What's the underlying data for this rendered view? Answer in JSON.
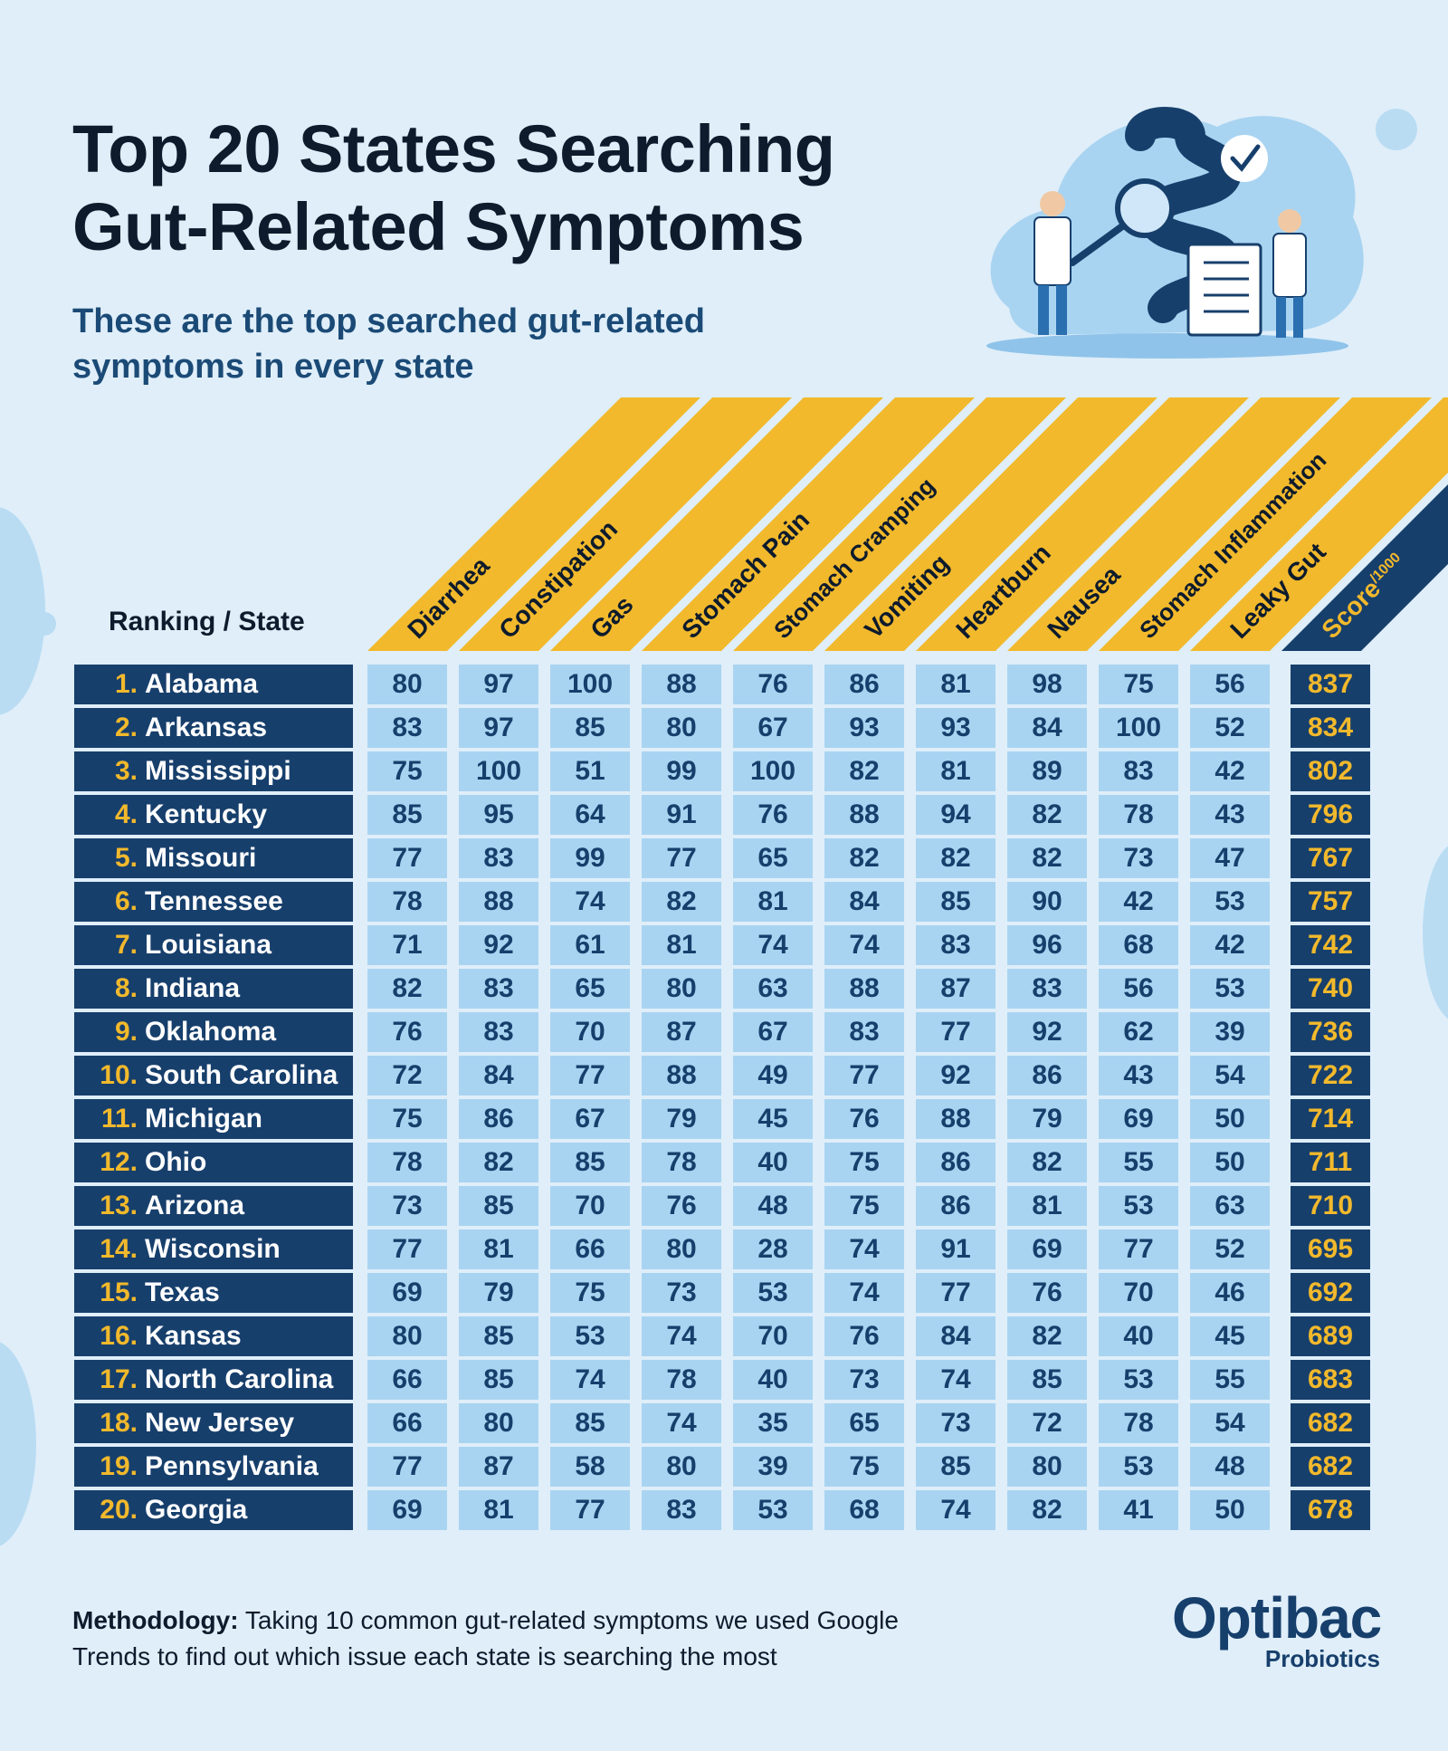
{
  "title_line1": "Top 20 States Searching",
  "title_line2": "Gut-Related Symptoms",
  "subtitle": "These are the top searched gut-related symptoms in every state",
  "colors": {
    "navy": "#173f6c",
    "gold": "#f2b92c",
    "light_blue": "#a9d4f1",
    "background": "#dfeef9"
  },
  "chart_data": {
    "type": "table",
    "row_header": "Ranking / State",
    "columns": [
      "Diarrhea",
      "Constipation",
      "Gas",
      "Stomach Pain",
      "Stomach Cramping",
      "Vomiting",
      "Heartburn",
      "Nausea",
      "Stomach Inflammation",
      "Leaky Gut"
    ],
    "score_label": "Score",
    "score_unit": "/1000",
    "rows": [
      {
        "rank": "1.",
        "state": "Alabama",
        "values": [
          80,
          97,
          100,
          88,
          76,
          86,
          81,
          98,
          75,
          56
        ],
        "score": 837
      },
      {
        "rank": "2.",
        "state": "Arkansas",
        "values": [
          83,
          97,
          85,
          80,
          67,
          93,
          93,
          84,
          100,
          52
        ],
        "score": 834
      },
      {
        "rank": "3.",
        "state": "Mississippi",
        "values": [
          75,
          100,
          51,
          99,
          100,
          82,
          81,
          89,
          83,
          42
        ],
        "score": 802
      },
      {
        "rank": "4.",
        "state": "Kentucky",
        "values": [
          85,
          95,
          64,
          91,
          76,
          88,
          94,
          82,
          78,
          43
        ],
        "score": 796
      },
      {
        "rank": "5.",
        "state": "Missouri",
        "values": [
          77,
          83,
          99,
          77,
          65,
          82,
          82,
          82,
          73,
          47
        ],
        "score": 767
      },
      {
        "rank": "6.",
        "state": "Tennessee",
        "values": [
          78,
          88,
          74,
          82,
          81,
          84,
          85,
          90,
          42,
          53
        ],
        "score": 757
      },
      {
        "rank": "7.",
        "state": "Louisiana",
        "values": [
          71,
          92,
          61,
          81,
          74,
          74,
          83,
          96,
          68,
          42
        ],
        "score": 742
      },
      {
        "rank": "8.",
        "state": "Indiana",
        "values": [
          82,
          83,
          65,
          80,
          63,
          88,
          87,
          83,
          56,
          53
        ],
        "score": 740
      },
      {
        "rank": "9.",
        "state": "Oklahoma",
        "values": [
          76,
          83,
          70,
          87,
          67,
          83,
          77,
          92,
          62,
          39
        ],
        "score": 736
      },
      {
        "rank": "10.",
        "state": "South Carolina",
        "values": [
          72,
          84,
          77,
          88,
          49,
          77,
          92,
          86,
          43,
          54
        ],
        "score": 722
      },
      {
        "rank": "11.",
        "state": "Michigan",
        "values": [
          75,
          86,
          67,
          79,
          45,
          76,
          88,
          79,
          69,
          50
        ],
        "score": 714
      },
      {
        "rank": "12.",
        "state": "Ohio",
        "values": [
          78,
          82,
          85,
          78,
          40,
          75,
          86,
          82,
          55,
          50
        ],
        "score": 711
      },
      {
        "rank": "13.",
        "state": "Arizona",
        "values": [
          73,
          85,
          70,
          76,
          48,
          75,
          86,
          81,
          53,
          63
        ],
        "score": 710
      },
      {
        "rank": "14.",
        "state": "Wisconsin",
        "values": [
          77,
          81,
          66,
          80,
          28,
          74,
          91,
          69,
          77,
          52
        ],
        "score": 695
      },
      {
        "rank": "15.",
        "state": "Texas",
        "values": [
          69,
          79,
          75,
          73,
          53,
          74,
          77,
          76,
          70,
          46
        ],
        "score": 692
      },
      {
        "rank": "16.",
        "state": "Kansas",
        "values": [
          80,
          85,
          53,
          74,
          70,
          76,
          84,
          82,
          40,
          45
        ],
        "score": 689
      },
      {
        "rank": "17.",
        "state": "North Carolina",
        "values": [
          66,
          85,
          74,
          78,
          40,
          73,
          74,
          85,
          53,
          55
        ],
        "score": 683
      },
      {
        "rank": "18.",
        "state": "New Jersey",
        "values": [
          66,
          80,
          85,
          74,
          35,
          65,
          73,
          72,
          78,
          54
        ],
        "score": 682
      },
      {
        "rank": "19.",
        "state": "Pennsylvania",
        "values": [
          77,
          87,
          58,
          80,
          39,
          75,
          85,
          80,
          53,
          48
        ],
        "score": 682
      },
      {
        "rank": "20.",
        "state": "Georgia",
        "values": [
          69,
          81,
          77,
          83,
          53,
          68,
          74,
          82,
          41,
          50
        ],
        "score": 678
      }
    ]
  },
  "methodology_label": "Methodology:",
  "methodology_text": "Taking 10 common gut-related symptoms we used Google Trends to find out which issue each state is searching the most",
  "logo": {
    "main": "Optibac",
    "sub": "Probiotics"
  }
}
